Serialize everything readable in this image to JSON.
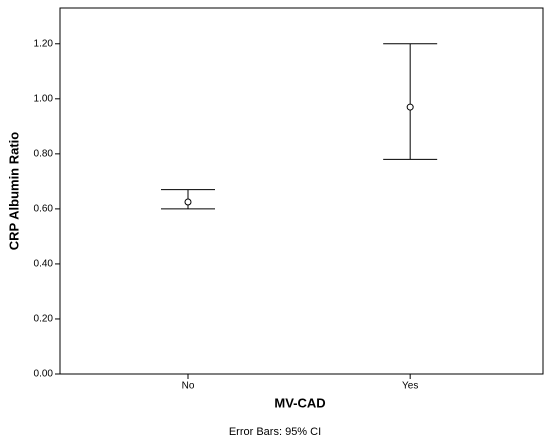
{
  "chart_data": {
    "type": "errorbar",
    "x_label": "MV-CAD",
    "y_label": "CRP Albumin Ratio",
    "footnote": "Error Bars: 95% CI",
    "categories": [
      "No",
      "Yes"
    ],
    "series": [
      {
        "name": "Mean",
        "values": [
          0.625,
          0.97
        ]
      },
      {
        "name": "Lower 95% CI",
        "values": [
          0.6,
          0.78
        ]
      },
      {
        "name": "Upper 95% CI",
        "values": [
          0.67,
          1.2
        ]
      }
    ],
    "color": "#000000",
    "ylim": [
      0,
      1.33
    ],
    "yticks": [
      {
        "value": 0,
        "label": "0.00"
      },
      {
        "value": 0.2,
        "label": "0.20"
      },
      {
        "value": 0.4,
        "label": "0.40"
      },
      {
        "value": 0.6,
        "label": "0.60"
      },
      {
        "value": 0.8,
        "label": "0.80"
      },
      {
        "value": 1.0,
        "label": "1.00"
      },
      {
        "value": 1.2,
        "label": "1.20"
      }
    ]
  }
}
